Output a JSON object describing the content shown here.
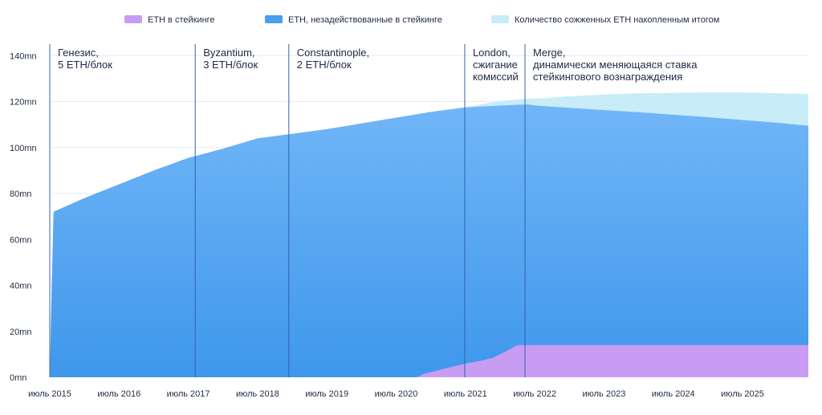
{
  "chart_data": {
    "type": "area",
    "title": "",
    "xlabel": "",
    "ylabel": "",
    "ylim": [
      0,
      145000000
    ],
    "xlim": [
      2015.0,
      2025.95
    ],
    "y_ticks": [
      0,
      20000000,
      40000000,
      60000000,
      80000000,
      100000000,
      120000000,
      140000000
    ],
    "y_tick_labels": [
      "0mn",
      "20mn",
      "40mn",
      "60mn",
      "80mn",
      "100mn",
      "120mn",
      "140mn"
    ],
    "x_ticks": [
      2015.0,
      2016.0,
      2017.0,
      2018.0,
      2019.0,
      2020.0,
      2021.0,
      2022.0,
      2023.0,
      2024.0,
      2025.0
    ],
    "x_tick_labels": [
      "июль 2015",
      "июль 2016",
      "июль 2017",
      "июль 2018",
      "июль 2019",
      "июль 2020",
      "июль 2021",
      "июль 2022",
      "июль 2023",
      "июль 2024",
      "июль 2025"
    ],
    "legend_position": "top",
    "series": [
      {
        "name": "ETH в стейкинге",
        "color": "#c99cf4",
        "x": [
          2015.0,
          2020.3,
          2020.4,
          2020.6,
          2020.8,
          2021.0,
          2021.2,
          2021.4,
          2021.6,
          2021.75,
          2021.9,
          2022.0,
          2023.0,
          2024.0,
          2025.0,
          2025.95
        ],
        "values": [
          0,
          0,
          1500000,
          3000000,
          4500000,
          6000000,
          7000000,
          8500000,
          11500000,
          14000000,
          14000000,
          14000000,
          14000000,
          14000000,
          14000000,
          14000000
        ]
      },
      {
        "name": "ETH, незадействованные в стейкинге",
        "color": "#4a9eed",
        "x": [
          2015.0,
          2015.05,
          2015.5,
          2016.0,
          2016.5,
          2017.0,
          2017.5,
          2018.0,
          2018.5,
          2019.0,
          2019.5,
          2020.0,
          2020.5,
          2021.0,
          2021.5,
          2021.9,
          2022.0,
          2022.5,
          2023.0,
          2023.5,
          2024.0,
          2024.5,
          2025.0,
          2025.5,
          2025.95
        ],
        "values": [
          0,
          72000000,
          78000000,
          84000000,
          90000000,
          95500000,
          99500000,
          104000000,
          106000000,
          108000000,
          110500000,
          113000000,
          115500000,
          117500000,
          118300000,
          118800000,
          118300000,
          117300000,
          116300000,
          115400000,
          114300000,
          113200000,
          112000000,
          110800000,
          109500000
        ]
      },
      {
        "name": "Количество сожженных ETH накопленным итогом",
        "color": "#c8ecf8",
        "x": [
          2015.0,
          2021.0,
          2021.5,
          2021.9,
          2022.5,
          2023.0,
          2023.5,
          2024.0,
          2024.5,
          2025.0,
          2025.5,
          2025.95
        ],
        "values": [
          0,
          0,
          2000000,
          2500000,
          5000000,
          6800000,
          8200000,
          9500000,
          10800000,
          12000000,
          12800000,
          13800000
        ]
      }
    ],
    "events": [
      {
        "x": 2015.0,
        "lines": [
          "Генезис,",
          "5 ETH/блок"
        ]
      },
      {
        "x": 2017.1,
        "lines": [
          "Byzantium,",
          "3 ETH/блок"
        ]
      },
      {
        "x": 2018.45,
        "lines": [
          "Constantinople,",
          "2 ETH/блок"
        ]
      },
      {
        "x": 2020.99,
        "lines": [
          "London,",
          "сжигание",
          "комиссий"
        ]
      },
      {
        "x": 2021.86,
        "lines": [
          "Merge,",
          "динамически меняющаяся ставка",
          "стейкингового вознаграждения"
        ]
      }
    ]
  }
}
